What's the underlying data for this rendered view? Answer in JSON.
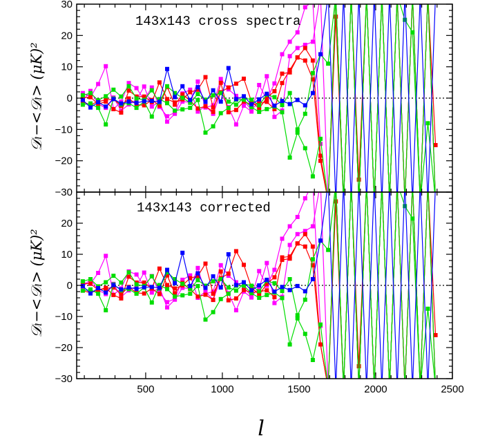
{
  "chart_data": [
    {
      "type": "line",
      "title": "143x143 cross spectra",
      "xlabel": "",
      "ylabel": "𝒟ₗ−<𝒟ₗ>  (μK)²",
      "xlim": [
        50,
        2500
      ],
      "ylim": [
        -30,
        30
      ],
      "x": [
        90,
        140,
        190,
        240,
        290,
        340,
        390,
        440,
        490,
        540,
        590,
        640,
        690,
        740,
        790,
        840,
        890,
        940,
        990,
        1040,
        1090,
        1140,
        1190,
        1240,
        1290,
        1340,
        1390,
        1440,
        1490,
        1540,
        1590,
        1640,
        1690,
        1740,
        1790,
        1840,
        1890,
        1940,
        1990,
        2040,
        2090,
        2140,
        2190,
        2240,
        2290,
        2340,
        2390
      ],
      "series": [
        {
          "color": "#ff00ff",
          "values": [
            1.6,
            0.3,
            4.5,
            10.2,
            -3.5,
            -1.1,
            4.8,
            3.2,
            -0.6,
            3.4,
            -2.8,
            -5.8,
            -4.6,
            1.5,
            2.7,
            -4.3,
            -2.5,
            -5.0,
            1.8,
            -2.9,
            -8.4,
            -2.4,
            -4.3,
            4.2,
            -0.5,
            4.7,
            14.0,
            18.0,
            21.0,
            29.0,
            31.0,
            -14.6,
            null,
            null,
            null,
            null,
            null,
            null,
            null,
            null,
            null,
            null,
            null,
            null,
            null,
            null,
            null
          ]
        },
        {
          "color": "#ff00ff",
          "values": [
            -0.8,
            2.3,
            -1.9,
            -3.1,
            0.2,
            -4.0,
            -2.0,
            -0.6,
            3.7,
            -2.7,
            -1.1,
            -7.5,
            -5.0,
            -1.1,
            -1.3,
            5.3,
            -3.0,
            -2.3,
            6.1,
            2.8,
            0.7,
            -0.9,
            -3.7,
            -1.2,
            7.0,
            -6.0,
            -4.0,
            13.4,
            16.0,
            17.0,
            18.0,
            33.0,
            -33.0,
            33.0,
            -33.0,
            33.0,
            -33.0,
            33.0,
            -33.0,
            33.0,
            -33.0,
            33.0,
            -33.0,
            33.0,
            -33.0,
            33.0,
            -33.0
          ]
        },
        {
          "color": "#ff0000",
          "values": [
            -1.3,
            -2.1,
            -1.1,
            -0.6,
            -0.3,
            -2.5,
            -0.1,
            -2.1,
            -2.3,
            -0.6,
            -2.4,
            3.6,
            -2.1,
            1.2,
            -0.8,
            -3.3,
            -2.6,
            -4.4,
            4.9,
            -4.5,
            -3.8,
            -1.1,
            -2.0,
            -1.7,
            -1.2,
            -3.5,
            4.8,
            9.0,
            13.0,
            12.0,
            6.0,
            -20.0,
            -33.0,
            26.0,
            -33.0,
            33.0,
            -33.0,
            33.0,
            -33.0,
            33.0,
            -33.0,
            33.0,
            -33.0,
            33.0,
            -33.0,
            33.0,
            -15.0
          ]
        },
        {
          "color": "#ff0000",
          "values": [
            0.1,
            0.3,
            -1.9,
            -1.1,
            -3.5,
            -4.6,
            2.4,
            0.5,
            0.5,
            -1.3,
            5.0,
            -0.3,
            -1.4,
            -0.4,
            1.9,
            2.7,
            6.7,
            -3.0,
            1.9,
            3.4,
            4.6,
            6.2,
            -1.1,
            -3.3,
            0.1,
            2.2,
            7.8,
            8.2,
            13.0,
            16.0,
            12.0,
            -18.4,
            -33.0,
            33.0,
            -33.0,
            33.0,
            -26.0,
            33.0,
            -33.0,
            33.0,
            -33.0,
            33.0,
            -33.0,
            33.0,
            -33.0,
            33.0,
            -33.0
          ]
        },
        {
          "color": "#00dd00",
          "values": [
            -2.1,
            -1.7,
            -3.1,
            -8.4,
            -0.1,
            -2.0,
            -1.6,
            -3.1,
            -1.1,
            -5.9,
            -0.3,
            -1.6,
            -4.0,
            -3.6,
            -3.1,
            -0.6,
            -11.0,
            -9.0,
            -4.8,
            -3.1,
            -0.5,
            -0.5,
            -2.9,
            -4.4,
            -3.5,
            -2.7,
            -4.5,
            -19.0,
            -11.0,
            -16.0,
            -25.0,
            -13.0,
            -33.0,
            33.0,
            -33.0,
            33.0,
            -33.0,
            33.0,
            -33.0,
            33.0,
            -33.0,
            33.0,
            -33.0,
            33.0,
            -33.0,
            33.0,
            -33.0
          ]
        },
        {
          "color": "#00dd00",
          "values": [
            0.9,
            1.6,
            -0.7,
            0.6,
            2.7,
            0.5,
            3.8,
            -0.1,
            -0.6,
            2.5,
            -1.4,
            3.8,
            1.6,
            0.1,
            -1.5,
            1.3,
            -0.5,
            0.9,
            1.6,
            -1.1,
            -2.1,
            0.1,
            -0.5,
            -2.3,
            1.1,
            0.3,
            -2.2,
            1.6,
            -10.0,
            -5.0,
            8.0,
            14.0,
            11.0,
            33.0,
            -33.0,
            33.0,
            -33.0,
            33.0,
            -33.0,
            33.0,
            -33.0,
            33.0,
            25.0,
            21.0,
            -33.0,
            -8.0,
            -33.0
          ]
        },
        {
          "color": "#0000ff",
          "values": [
            -0.6,
            -3.0,
            -1.3,
            -2.7,
            -0.3,
            -1.7,
            -1.1,
            -1.5,
            -1.0,
            -0.9,
            -1.2,
            9.3,
            0.3,
            3.8,
            -0.6,
            3.5,
            -1.2,
            2.5,
            -1.1,
            9.6,
            -0.3,
            0.6,
            -2.0,
            -0.4,
            1.4,
            -2.4,
            -0.9,
            -1.9,
            -0.6,
            -2.3,
            1.6,
            14.0,
            33.0,
            -33.0,
            33.0,
            -33.0,
            33.0,
            -33.0,
            33.0,
            -33.0,
            33.0,
            -33.0,
            33.0,
            -33.0,
            33.0,
            -33.0,
            33.0
          ]
        }
      ]
    },
    {
      "type": "line",
      "title": "143x143  corrected",
      "xlabel": "l",
      "ylabel": "𝒟ₗ−<𝒟ₗ>  (μK)²",
      "xlim": [
        50,
        2500
      ],
      "ylim": [
        -30,
        30
      ],
      "xticks": [
        500,
        1000,
        1500,
        2000,
        2500
      ],
      "yticks": [
        -30,
        -20,
        -10,
        0,
        10,
        20
      ],
      "x": [
        90,
        140,
        190,
        240,
        290,
        340,
        390,
        440,
        490,
        540,
        590,
        640,
        690,
        740,
        790,
        840,
        890,
        940,
        990,
        1040,
        1090,
        1140,
        1190,
        1240,
        1290,
        1340,
        1390,
        1440,
        1490,
        1540,
        1590,
        1640,
        1690,
        1740,
        1790,
        1840,
        1890,
        1940,
        1990,
        2040,
        2090,
        2140,
        2190,
        2240,
        2290,
        2340,
        2390
      ],
      "series": [
        {
          "color": "#ff00ff",
          "values": [
            1.0,
            0.5,
            4.0,
            9.5,
            -3.0,
            -1.0,
            4.5,
            3.5,
            -0.2,
            3.0,
            -2.3,
            -5.4,
            -4.3,
            1.8,
            3.2,
            -4.0,
            -2.0,
            -4.6,
            2.2,
            -2.5,
            -8.0,
            -2.0,
            -3.9,
            4.6,
            -0.1,
            5.0,
            15.0,
            19.0,
            22.0,
            28.0,
            33.0,
            -13.0,
            null,
            null,
            null,
            null,
            null,
            null,
            null,
            null,
            null,
            null,
            null,
            null,
            null,
            null,
            null
          ]
        },
        {
          "color": "#ff00ff",
          "values": [
            -0.5,
            2.0,
            -1.5,
            -2.8,
            0.5,
            -3.7,
            -1.6,
            -0.2,
            4.1,
            -2.3,
            -0.7,
            -7.1,
            -4.6,
            -0.8,
            -1.0,
            5.6,
            -2.7,
            -2.0,
            6.5,
            3.1,
            1.0,
            -0.6,
            -3.4,
            -0.9,
            7.2,
            -5.7,
            -3.7,
            13.0,
            16.5,
            17.5,
            19.0,
            33.0,
            -33.0,
            33.0,
            -33.0,
            33.0,
            -33.0,
            33.0,
            -33.0,
            33.0,
            -33.0,
            33.0,
            -33.0,
            33.0,
            -33.0,
            33.0,
            -33.0
          ]
        },
        {
          "color": "#ff0000",
          "values": [
            -1.7,
            -2.4,
            -1.5,
            -1.0,
            -0.7,
            -2.8,
            -0.5,
            -2.4,
            -2.6,
            -1.0,
            -2.8,
            3.2,
            -2.5,
            0.8,
            -1.2,
            -3.6,
            -3.0,
            -4.7,
            4.5,
            -4.8,
            -4.2,
            -1.5,
            -2.3,
            -2.0,
            -1.6,
            -3.8,
            9.0,
            9.3,
            13.5,
            12.5,
            6.5,
            -19.0,
            -33.0,
            27.0,
            -33.0,
            33.0,
            -33.0,
            33.0,
            -33.0,
            33.0,
            -33.0,
            33.0,
            -33.0,
            33.0,
            -33.0,
            33.0,
            -16.0
          ]
        },
        {
          "color": "#ff0000",
          "values": [
            0.5,
            0.6,
            -1.5,
            -0.8,
            -3.1,
            -4.2,
            2.8,
            0.9,
            0.9,
            -1.0,
            5.4,
            0.1,
            -1.0,
            0.0,
            2.3,
            3.0,
            7.0,
            -2.7,
            2.3,
            3.8,
            11.0,
            6.6,
            -0.7,
            -3.0,
            0.5,
            2.6,
            8.2,
            8.6,
            13.5,
            16.5,
            12.5,
            -19.0,
            -33.0,
            33.0,
            -33.0,
            33.0,
            -26.0,
            33.0,
            -33.0,
            33.0,
            -33.0,
            33.0,
            -33.0,
            33.0,
            -33.0,
            33.0,
            -33.0
          ]
        },
        {
          "color": "#00dd00",
          "values": [
            -1.7,
            -1.3,
            -2.7,
            -8.0,
            0.3,
            -1.6,
            -1.2,
            -2.7,
            -0.7,
            -5.5,
            0.1,
            -1.2,
            -3.6,
            -3.2,
            -2.7,
            -0.2,
            -11.0,
            -8.6,
            -4.4,
            -2.7,
            -0.1,
            -0.1,
            -2.5,
            -4.0,
            -3.1,
            -2.3,
            -4.1,
            -19.0,
            -10.6,
            -15.6,
            -24.0,
            -12.6,
            -33.0,
            33.0,
            -33.0,
            33.0,
            -33.0,
            33.0,
            -33.0,
            33.0,
            -33.0,
            33.0,
            -33.0,
            33.0,
            -33.0,
            33.0,
            -33.0
          ]
        },
        {
          "color": "#00dd00",
          "values": [
            1.3,
            2.0,
            -0.3,
            1.0,
            3.1,
            0.9,
            4.2,
            0.3,
            -0.2,
            2.9,
            -1.0,
            4.2,
            2.0,
            0.5,
            -1.1,
            1.7,
            -0.1,
            1.3,
            2.0,
            -0.7,
            -1.7,
            0.5,
            -0.1,
            -1.9,
            1.5,
            0.7,
            -1.8,
            2.0,
            -9.6,
            -4.6,
            8.4,
            14.4,
            11.4,
            33.0,
            -33.0,
            33.0,
            -33.0,
            33.0,
            -33.0,
            33.0,
            -33.0,
            33.0,
            25.5,
            21.5,
            -33.0,
            -7.5,
            -33.0
          ]
        },
        {
          "color": "#0000ff",
          "values": [
            -0.2,
            -2.6,
            -0.9,
            -2.3,
            0.1,
            -1.3,
            -0.7,
            -1.1,
            -0.6,
            -0.5,
            -0.8,
            5.0,
            0.7,
            10.5,
            -0.2,
            3.9,
            -0.8,
            2.9,
            -0.7,
            10.0,
            0.1,
            1.0,
            -1.6,
            0.0,
            1.8,
            -2.0,
            -0.5,
            -1.5,
            -0.2,
            -1.9,
            2.0,
            14.4,
            33.0,
            -33.0,
            33.0,
            -33.0,
            33.0,
            -33.0,
            33.0,
            -33.0,
            33.0,
            -33.0,
            33.0,
            -33.0,
            33.0,
            -33.0,
            33.0
          ]
        }
      ]
    }
  ],
  "labels": {
    "top_title": "143x143 cross spectra",
    "bottom_title": "143x143  corrected",
    "ylabel_top": "𝒟ₗ−<𝒟ₗ>  (μK)²",
    "ylabel_bottom": "𝒟ₗ−<𝒟ₗ>  (μK)²",
    "xlabel": "l",
    "xticks": [
      "500",
      "1000",
      "1500",
      "2000",
      "2500"
    ],
    "top_yticks": [
      "30",
      "20",
      "10",
      "0",
      "−10",
      "−20",
      "−30"
    ],
    "bottom_yticks": [
      "20",
      "10",
      "0",
      "−10",
      "−20",
      "−30"
    ]
  }
}
